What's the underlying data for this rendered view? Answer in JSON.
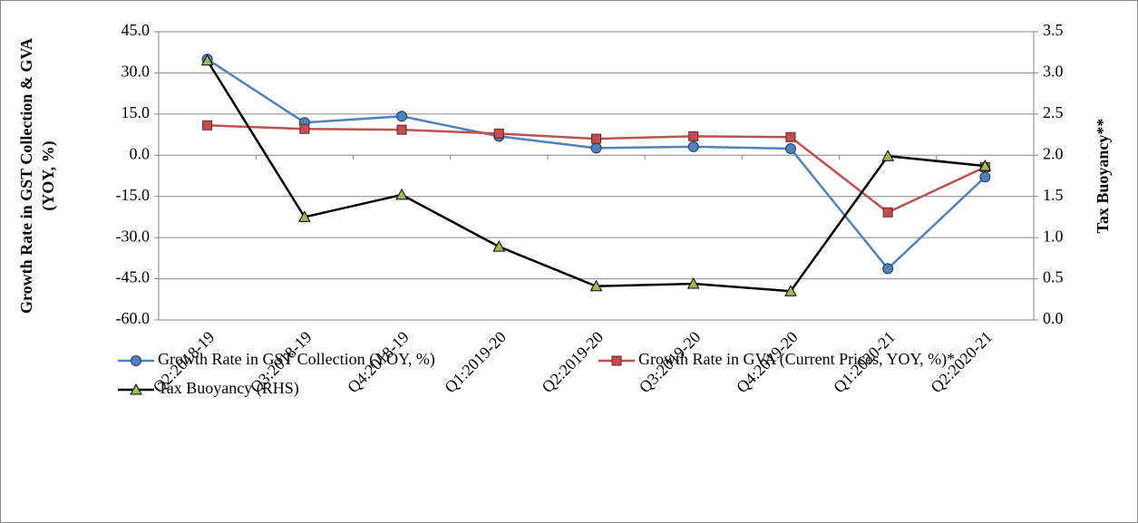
{
  "chart_data": {
    "type": "line",
    "categories": [
      "Q2:2018-19",
      "Q3:2018-19",
      "Q4:2018-19",
      "Q1:2019-20",
      "Q2:2019-20",
      "Q3:2019-20",
      "Q4:2019-20",
      "Q1:2020-21",
      "Q2:2020-21"
    ],
    "ylabel": [
      "Growth Rate in GST Collection & GVA",
      "(YOY, %)"
    ],
    "y2label": "Tax Buoyancy**",
    "ylim": [
      -60,
      45
    ],
    "yticks": [
      {
        "value": -60,
        "label": "-60.0"
      },
      {
        "value": -45,
        "label": "-45.0"
      },
      {
        "value": -30,
        "label": "-30.0"
      },
      {
        "value": -15,
        "label": "-15.0"
      },
      {
        "value": 0,
        "label": "0.0"
      },
      {
        "value": 15,
        "label": "15.0"
      },
      {
        "value": 30,
        "label": "30.0"
      },
      {
        "value": 45,
        "label": "45.0"
      }
    ],
    "y2lim": [
      0,
      3.5
    ],
    "y2ticks": [
      {
        "value": 0,
        "label": "0.0"
      },
      0.5,
      {
        "value": 1,
        "label": "1.0"
      },
      1.5,
      {
        "value": 2,
        "label": "2.0"
      },
      2.5,
      {
        "value": 3,
        "label": "3.0"
      },
      3.5
    ],
    "grid": true,
    "legend": "bottom",
    "series": [
      {
        "name": "Growth Rate in GST Collection (YOY, %)",
        "color": "#4f81bd",
        "marker": "circle",
        "values": [
          35.0,
          11.9,
          14.2,
          6.9,
          2.6,
          3.1,
          2.4,
          -41.3,
          -7.9
        ]
      },
      {
        "name": "Growth Rate in GVA (Current Prices, YOY, %)*",
        "color": "#c0504d",
        "marker": "square",
        "values": [
          10.9,
          9.6,
          9.3,
          7.9,
          6.0,
          6.9,
          6.6,
          -20.8,
          -4.3
        ]
      },
      {
        "name": "Tax Buoyancy (RHS)",
        "color": "#000000",
        "marker": "triangle",
        "axis": "y2",
        "values": [
          3.15,
          1.25,
          1.52,
          0.89,
          0.41,
          0.44,
          0.35,
          1.99,
          1.87
        ]
      }
    ]
  }
}
